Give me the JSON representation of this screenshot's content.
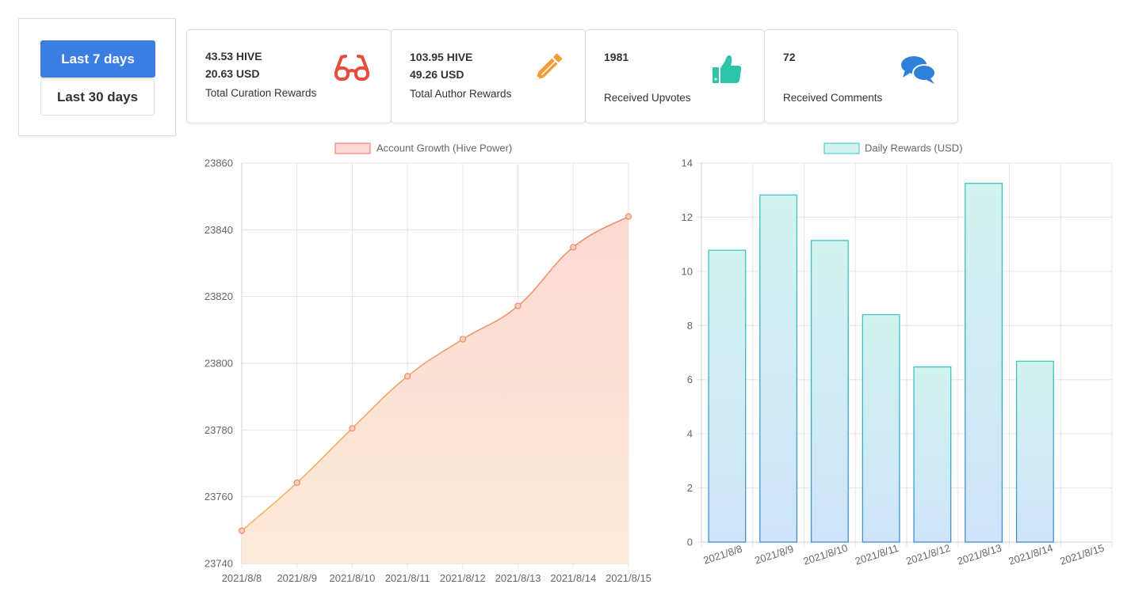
{
  "range_selector": {
    "options": [
      "Last 7 days",
      "Last 30 days"
    ],
    "selected": "Last 7 days"
  },
  "cards": [
    {
      "line1": "43.53 HIVE",
      "line2": "20.63 USD",
      "label": "Total Curation Rewards",
      "icon": "glasses-icon",
      "color": "#e74c3c"
    },
    {
      "line1": "103.95 HIVE",
      "line2": "49.26 USD",
      "label": "Total Author Rewards",
      "icon": "pencil-icon",
      "color": "#f39c3d"
    },
    {
      "line1": "1981",
      "line2": "",
      "label": "Received Upvotes",
      "icon": "thumbs-up-icon",
      "color": "#2ec4a9"
    },
    {
      "line1": "72",
      "line2": "",
      "label": "Received Comments",
      "icon": "comments-icon",
      "color": "#2f80d9"
    }
  ],
  "chart_data": [
    {
      "type": "area",
      "legend": "Account Growth (Hive Power)",
      "categories": [
        "2021/8/8",
        "2021/8/9",
        "2021/8/10",
        "2021/8/11",
        "2021/8/12",
        "2021/8/13",
        "2021/8/14",
        "2021/8/15"
      ],
      "values": [
        23749.8,
        23764.2,
        23780.5,
        23796.1,
        23807.2,
        23817.2,
        23834.8,
        23844
      ],
      "ylim": [
        23740,
        23860
      ],
      "yticks": [
        "23740",
        "23760",
        "23780",
        "23800",
        "23820",
        "23840",
        "23860"
      ],
      "grid": true,
      "legend_position": "top",
      "colors": {
        "line": "#f4a560",
        "fill_top": "#fcd9d2",
        "fill_bottom": "#fdebd9",
        "point": "#f08f70"
      }
    },
    {
      "type": "bar",
      "legend": "Daily Rewards (USD)",
      "categories": [
        "2021/8/8",
        "2021/8/9",
        "2021/8/10",
        "2021/8/11",
        "2021/8/12",
        "2021/8/13",
        "2021/8/14",
        "2021/8/15"
      ],
      "values": [
        10.78,
        12.82,
        11.14,
        8.4,
        6.47,
        13.25,
        6.68,
        null
      ],
      "ylim": [
        0,
        14
      ],
      "yticks": [
        "0",
        "2",
        "4",
        "6",
        "8",
        "10",
        "12",
        "14"
      ],
      "grid": true,
      "legend_position": "top",
      "colors": {
        "border_top": "#3fc6c0",
        "border_bottom": "#3a8fdc",
        "fill_top": "#d2f3ef",
        "fill_bottom": "#cfe4fa"
      }
    }
  ]
}
